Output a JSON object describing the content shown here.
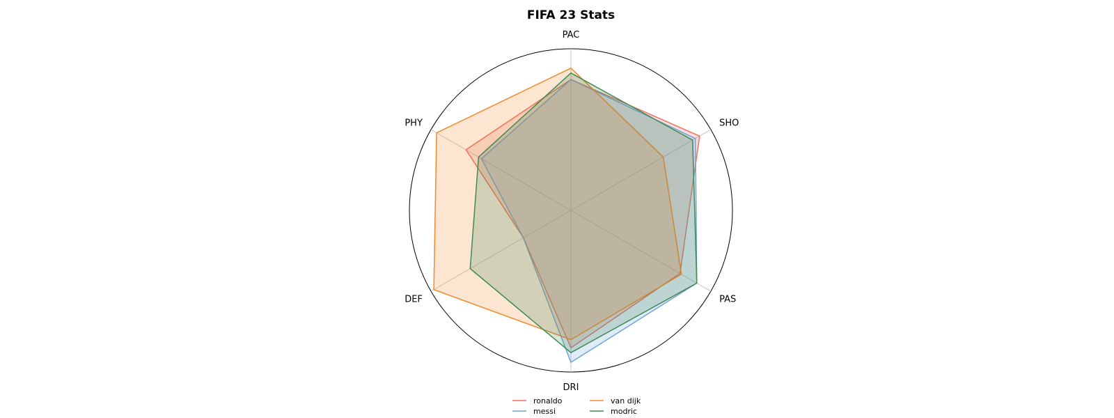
{
  "chart_data": {
    "type": "radar",
    "title": "FIFA 23 Stats",
    "axes": [
      "PAC",
      "SHO",
      "PAS",
      "DRI",
      "DEF",
      "PHY"
    ],
    "range": [
      0,
      100
    ],
    "grid": true,
    "legend_position": "bottom-center",
    "series": [
      {
        "name": "ronaldo",
        "color": "#ef6f5e",
        "values": [
          81,
          92,
          78,
          85,
          34,
          75
        ]
      },
      {
        "name": "messi",
        "color": "#6fa4d6",
        "values": [
          81,
          89,
          90,
          94,
          34,
          64
        ]
      },
      {
        "name": "van dijk",
        "color": "#f08a2e",
        "values": [
          88,
          66,
          79,
          80,
          98,
          96
        ]
      },
      {
        "name": "modric",
        "color": "#3f8a55",
        "values": [
          85,
          87,
          90,
          88,
          72,
          66
        ]
      }
    ]
  }
}
